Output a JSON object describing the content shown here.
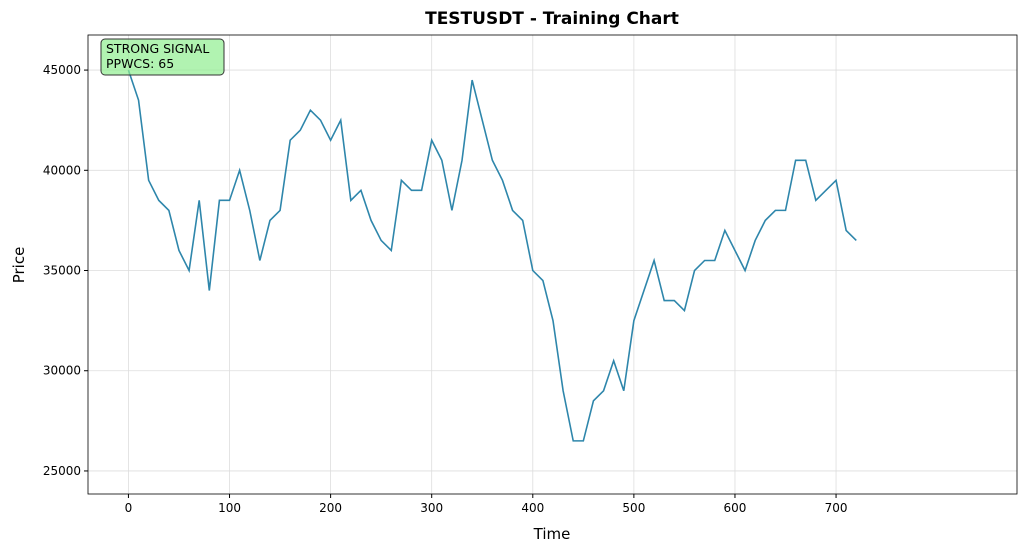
{
  "chart_data": {
    "type": "line",
    "title": "TESTUSDT - Training Chart",
    "xlabel": "Time",
    "ylabel": "Price",
    "annotation": [
      "STRONG SIGNAL",
      "PPWCS: 65"
    ],
    "x": [
      0,
      10,
      20,
      30,
      40,
      50,
      60,
      70,
      80,
      90,
      100,
      110,
      120,
      130,
      140,
      150,
      160,
      170,
      180,
      190,
      200,
      210,
      220,
      230,
      240,
      250,
      260,
      270,
      280,
      290,
      300,
      310,
      320,
      330,
      340,
      350,
      360,
      370,
      380,
      390,
      400,
      410,
      420,
      430,
      440,
      450,
      460,
      470,
      480,
      490,
      500,
      510,
      520,
      530,
      540,
      550,
      560,
      570,
      580,
      590,
      600,
      610,
      620,
      630,
      640,
      650,
      660,
      670,
      680,
      690,
      700,
      710,
      720
    ],
    "series": [
      {
        "name": "Price",
        "color": "#2e86ab",
        "values": [
          45000,
          43500,
          39500,
          38500,
          38000,
          36000,
          35000,
          38500,
          34000,
          38500,
          38500,
          40000,
          38000,
          35500,
          37500,
          38000,
          41500,
          42000,
          43000,
          42500,
          41500,
          42500,
          38500,
          39000,
          37500,
          36500,
          36000,
          39500,
          39000,
          39000,
          41500,
          40500,
          38000,
          40500,
          44500,
          42500,
          40500,
          39500,
          38000,
          37500,
          35000,
          34500,
          32500,
          29000,
          26500,
          26500,
          28500,
          29000,
          30500,
          29000,
          32500,
          34000,
          35500,
          33500,
          33500,
          33000,
          35000,
          35500,
          35500,
          37000,
          36000,
          35000,
          36500,
          37500,
          38000,
          38000,
          40500,
          40500,
          38500,
          39000,
          39500,
          37000,
          36500
        ]
      }
    ],
    "xlim": [
      -40,
      879
    ],
    "ylim": [
      23850,
      46750
    ],
    "xticks": [
      0,
      100,
      200,
      300,
      400,
      500,
      600,
      700
    ],
    "yticks": [
      25000,
      30000,
      35000,
      40000,
      45000
    ],
    "grid": true
  }
}
